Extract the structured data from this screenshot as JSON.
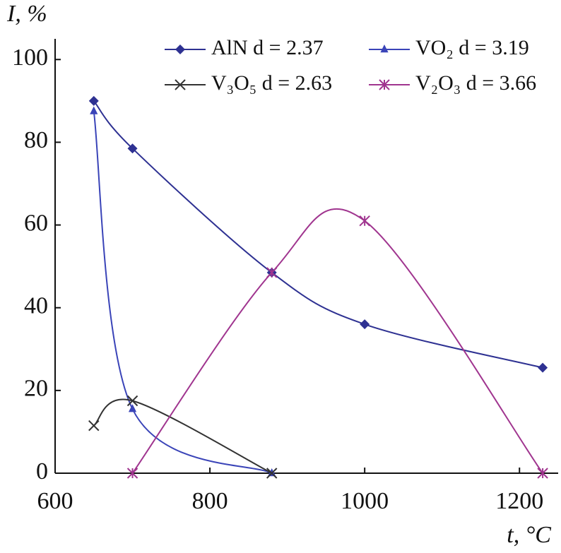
{
  "chart_data": {
    "type": "line",
    "x_label": "t, °C",
    "y_label": "I, %",
    "xlim": [
      600,
      1250
    ],
    "ylim": [
      0,
      105
    ],
    "xticks": [
      600,
      800,
      1000,
      1200
    ],
    "yticks": [
      0,
      20,
      40,
      60,
      80,
      100
    ],
    "smooth": true,
    "series": [
      {
        "name": "AlN d = 2.37",
        "color": "#2e3192",
        "marker": "diamond",
        "x": [
          650,
          700,
          880,
          1000,
          1230
        ],
        "values": [
          90,
          78.5,
          48.5,
          36,
          25.5
        ]
      },
      {
        "name": "VO₂ d = 3.19",
        "color": "#3a44b8",
        "marker": "triangle",
        "x": [
          650,
          700,
          880
        ],
        "values": [
          87.5,
          15.5,
          0
        ]
      },
      {
        "name": "V₃O₅ d = 2.63",
        "color": "#333333",
        "marker": "x",
        "x": [
          650,
          700,
          880
        ],
        "values": [
          11.5,
          17.5,
          0
        ]
      },
      {
        "name": "V₂O₃ d = 3.66",
        "color": "#a0358f",
        "marker": "asterisk",
        "x": [
          700,
          880,
          1000,
          1230
        ],
        "values": [
          0,
          48.5,
          61,
          0
        ]
      }
    ]
  }
}
